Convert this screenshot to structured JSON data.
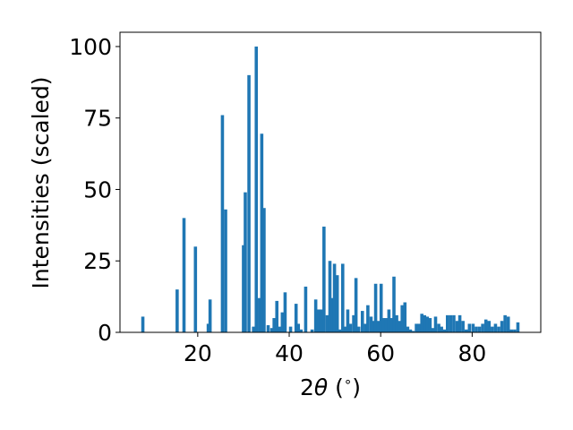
{
  "chart_data": {
    "type": "bar",
    "title": "",
    "xlabel_parts": {
      "pre": "2",
      "theta": "θ",
      "post": " (",
      "degree": "∘",
      "close": ")"
    },
    "ylabel": "Intensities (scaled)",
    "xlim": [
      3,
      95
    ],
    "ylim": [
      0,
      105
    ],
    "xticks": [
      20,
      40,
      60,
      80
    ],
    "yticks": [
      0,
      25,
      50,
      75,
      100
    ],
    "grid": false,
    "bar_color": "#1f77b4",
    "bar_width": 0.7,
    "x": [
      8.0,
      15.5,
      17.0,
      19.5,
      22.3,
      22.7,
      25.4,
      26.1,
      30.0,
      30.4,
      31.2,
      32.2,
      32.8,
      33.5,
      34.0,
      34.5,
      35.4,
      36.2,
      36.7,
      37.3,
      37.9,
      38.5,
      39.1,
      40.3,
      41.5,
      42.0,
      42.6,
      43.6,
      45.0,
      45.8,
      46.4,
      47.0,
      47.6,
      48.3,
      48.9,
      49.4,
      49.9,
      50.5,
      51.0,
      51.7,
      52.2,
      52.8,
      53.4,
      54.1,
      54.6,
      55.2,
      56.0,
      56.7,
      57.2,
      57.9,
      58.5,
      58.9,
      59.5,
      60.1,
      60.6,
      61.2,
      61.8,
      62.4,
      62.9,
      63.5,
      64.1,
      64.7,
      65.3,
      65.9,
      66.5,
      67.1,
      67.8,
      68.4,
      69.0,
      69.6,
      70.2,
      70.8,
      71.4,
      72.0,
      72.7,
      73.3,
      73.9,
      74.6,
      75.3,
      76.0,
      76.7,
      77.3,
      78.0,
      78.7,
      79.4,
      80.2,
      80.9,
      81.6,
      82.3,
      83.0,
      83.7,
      84.4,
      85.1,
      85.8,
      86.5,
      87.2,
      87.9,
      88.6,
      89.3,
      90.0
    ],
    "values": [
      5.5,
      15,
      40,
      30,
      3,
      11.5,
      76,
      43,
      30.5,
      49,
      90,
      2,
      100,
      12,
      69.5,
      43.5,
      2.5,
      1.5,
      5,
      11,
      2,
      7,
      14,
      2,
      10,
      3,
      1,
      16,
      1,
      11.5,
      8,
      8,
      37,
      6,
      25,
      12,
      24,
      20,
      1,
      24,
      2,
      8,
      3,
      6,
      19,
      2,
      7.5,
      3,
      9.5,
      5.5,
      4,
      17,
      4,
      17,
      5,
      5,
      8,
      5,
      19.5,
      6,
      4,
      9.5,
      10.5,
      2,
      1,
      0.5,
      3,
      3,
      6.5,
      6,
      5.5,
      5,
      1.5,
      5.5,
      3,
      2,
      1,
      6,
      6,
      6,
      4,
      6,
      4,
      1,
      3,
      3,
      2,
      2,
      3,
      4.5,
      4,
      2,
      3,
      2,
      4,
      6,
      5.5,
      1,
      1,
      3.5
    ]
  }
}
